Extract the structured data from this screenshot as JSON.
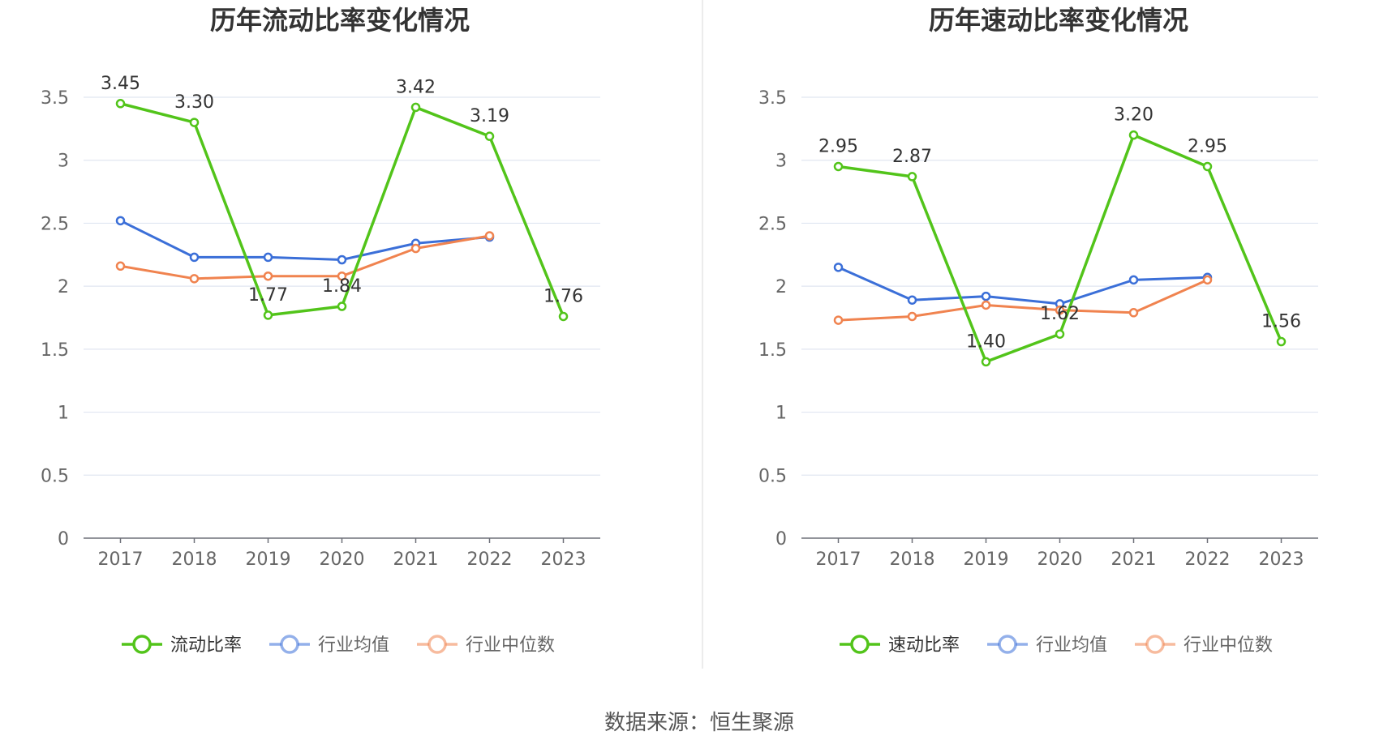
{
  "source_label": "数据来源：恒生聚源",
  "chart_data": [
    {
      "type": "line",
      "title": "历年流动比率变化情况",
      "categories": [
        "2017",
        "2018",
        "2019",
        "2020",
        "2021",
        "2022",
        "2023"
      ],
      "y_ticks": [
        "0",
        "0.5",
        "1",
        "1.5",
        "2",
        "2.5",
        "3",
        "3.5"
      ],
      "ylim": [
        0,
        3.5
      ],
      "grid": true,
      "legend_position": "bottom",
      "series": [
        {
          "name": "流动比率",
          "color": "#52c41a",
          "values": [
            3.45,
            3.3,
            1.77,
            1.84,
            3.42,
            3.19,
            1.76
          ],
          "labels": [
            "3.45",
            "3.30",
            "1.77",
            "1.84",
            "3.42",
            "3.19",
            "1.76"
          ],
          "label_pos": [
            "above",
            "above",
            "below",
            "above",
            "above",
            "above",
            "above"
          ]
        },
        {
          "name": "行业均值",
          "color": "#3b6fd8",
          "values": [
            2.52,
            2.23,
            2.23,
            2.21,
            2.34,
            2.39,
            null
          ]
        },
        {
          "name": "行业中位数",
          "color": "#f0834f",
          "values": [
            2.16,
            2.06,
            2.08,
            2.08,
            2.3,
            2.4,
            null
          ]
        }
      ]
    },
    {
      "type": "line",
      "title": "历年速动比率变化情况",
      "categories": [
        "2017",
        "2018",
        "2019",
        "2020",
        "2021",
        "2022",
        "2023"
      ],
      "y_ticks": [
        "0",
        "0.5",
        "1",
        "1.5",
        "2",
        "2.5",
        "3",
        "3.5"
      ],
      "ylim": [
        0,
        3.5
      ],
      "grid": true,
      "legend_position": "bottom",
      "series": [
        {
          "name": "速动比率",
          "color": "#52c41a",
          "values": [
            2.95,
            2.87,
            1.4,
            1.62,
            3.2,
            2.95,
            1.56
          ],
          "labels": [
            "2.95",
            "2.87",
            "1.40",
            "1.62",
            "3.20",
            "2.95",
            "1.56"
          ],
          "label_pos": [
            "above",
            "above",
            "above",
            "above",
            "above",
            "above",
            "above"
          ]
        },
        {
          "name": "行业均值",
          "color": "#3b6fd8",
          "values": [
            2.15,
            1.89,
            1.92,
            1.86,
            2.05,
            2.07,
            null
          ]
        },
        {
          "name": "行业中位数",
          "color": "#f0834f",
          "values": [
            1.73,
            1.76,
            1.85,
            1.81,
            1.79,
            2.05,
            null
          ]
        }
      ]
    }
  ]
}
